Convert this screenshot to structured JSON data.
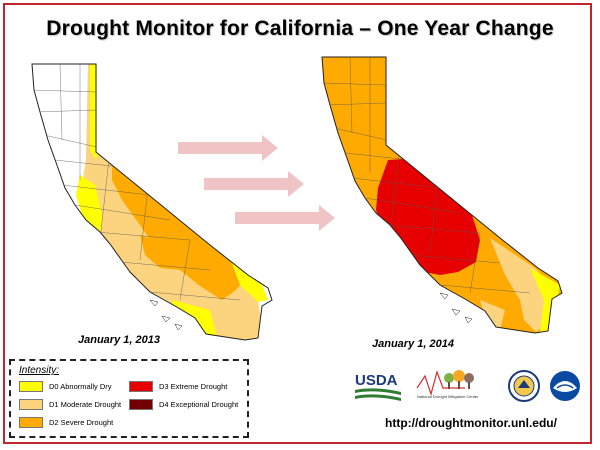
{
  "title": "Drought Monitor for California – One Year Change",
  "maps": [
    {
      "date": "January 1, 2013"
    },
    {
      "date": "January 1, 2014"
    }
  ],
  "legend": {
    "title": "Intensity:",
    "items": [
      {
        "label": "D0 Abnormally Dry",
        "color": "#ffff00"
      },
      {
        "label": "D1 Moderate Drought",
        "color": "#fcd37f"
      },
      {
        "label": "D2 Severe Drought",
        "color": "#ffaa00"
      },
      {
        "label": "D3 Extreme Drought",
        "color": "#e60000"
      },
      {
        "label": "D4 Exceptional Drought",
        "color": "#730000"
      }
    ]
  },
  "logos": {
    "usda": "USDA",
    "ndmc": "National Drought Mitigation Center",
    "icons": [
      "usda-logo-icon",
      "ndmc-logo-icon",
      "commerce-seal-icon",
      "noaa-logo-icon"
    ]
  },
  "url": "http://droughtmonitor.unl.edu/",
  "colors": {
    "frame": "#c0262c",
    "arrow": "#f0c4c4",
    "none": "#ffffff"
  }
}
